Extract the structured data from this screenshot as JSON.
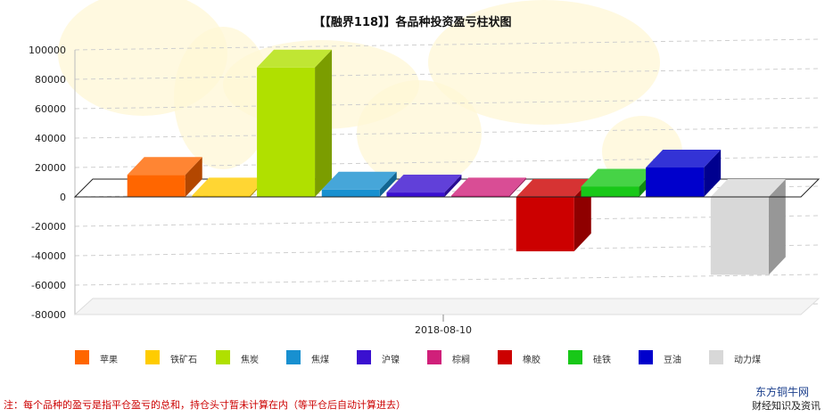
{
  "title": "【【融界118】】各品种投资盈亏柱状图",
  "chart_data": {
    "type": "bar",
    "title": "【【融界118】】各品种投资盈亏柱状图",
    "x_label": "2018-08-10",
    "ylim": [
      -80000,
      100000
    ],
    "y_ticks": [
      "100000",
      "80000",
      "60000",
      "40000",
      "20000",
      "0",
      "-20000",
      "-40000",
      "-60000",
      "-80000"
    ],
    "grid": true,
    "legend_position": "bottom",
    "series": [
      {
        "name": "苹果",
        "value": 15000,
        "color": "#ff6600"
      },
      {
        "name": "铁矿石",
        "value": 1000,
        "color": "#ffcc00"
      },
      {
        "name": "焦炭",
        "value": 88000,
        "color": "#b0e000"
      },
      {
        "name": "焦煤",
        "value": 5000,
        "color": "#1890d0"
      },
      {
        "name": "沪镍",
        "value": 3000,
        "color": "#3a10d0"
      },
      {
        "name": "棕榈",
        "value": 1000,
        "color": "#d0207a"
      },
      {
        "name": "橡胶",
        "value": -37000,
        "color": "#cc0000"
      },
      {
        "name": "硅铁",
        "value": 7000,
        "color": "#18c818"
      },
      {
        "name": "豆油",
        "value": 20000,
        "color": "#0000cc"
      },
      {
        "name": "动力煤",
        "value": -53000,
        "color": "#d8d8d8"
      }
    ]
  },
  "footnote": "注：每个品种的盈亏是指平仓盈亏的总和，持仓头寸暂未计算在内（等平仓后自动计算进去）",
  "brand": {
    "name": "东方铜牛网",
    "tagline": "财经知识及资讯"
  }
}
